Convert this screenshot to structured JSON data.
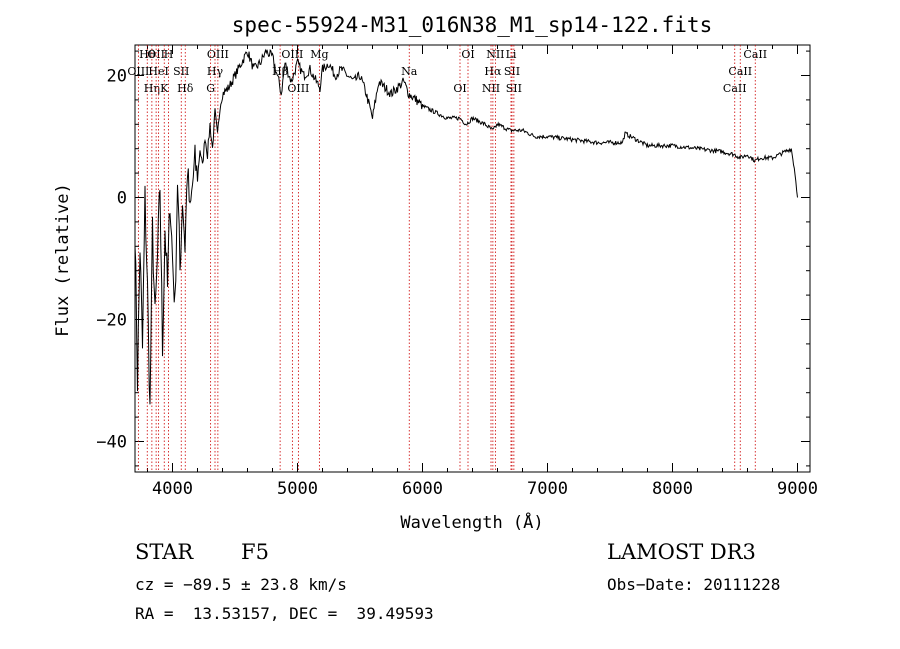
{
  "chart_data": {
    "type": "line",
    "title": "spec-55924-M31_016N38_M1_sp14-122.fits",
    "xlabel": "Wavelength (Å)",
    "ylabel": "Flux (relative)",
    "xlim": [
      3700,
      9100
    ],
    "ylim": [
      -45,
      25
    ],
    "xticks": [
      4000,
      5000,
      6000,
      7000,
      8000,
      9000
    ],
    "yticks": [
      -40,
      -20,
      0,
      20
    ],
    "ytick_labels": [
      "−40",
      "−20",
      "0",
      "20"
    ],
    "line_color": "#000000",
    "marker_color": "#cc0000",
    "series": [
      {
        "name": "spectrum",
        "x": [
          3700,
          3720,
          3740,
          3760,
          3780,
          3800,
          3820,
          3840,
          3860,
          3880,
          3900,
          3920,
          3940,
          3960,
          3980,
          4000,
          4020,
          4040,
          4060,
          4080,
          4100,
          4120,
          4140,
          4160,
          4180,
          4200,
          4220,
          4240,
          4260,
          4280,
          4300,
          4320,
          4340,
          4360,
          4380,
          4400,
          4450,
          4500,
          4550,
          4600,
          4650,
          4700,
          4750,
          4800,
          4850,
          4870,
          4900,
          4950,
          5000,
          5050,
          5100,
          5150,
          5180,
          5200,
          5250,
          5300,
          5350,
          5400,
          5450,
          5500,
          5550,
          5600,
          5650,
          5700,
          5750,
          5800,
          5850,
          5890,
          5950,
          6000,
          6100,
          6200,
          6300,
          6350,
          6400,
          6500,
          6563,
          6600,
          6700,
          6800,
          6900,
          7000,
          7200,
          7400,
          7600,
          7620,
          7800,
          8000,
          8200,
          8400,
          8500,
          8540,
          8600,
          8660,
          8700,
          8800,
          8900,
          8950,
          8980,
          9000
        ],
        "values": [
          -5,
          -30,
          -8,
          -25,
          0,
          -15,
          -35,
          -5,
          -20,
          -10,
          2,
          -25,
          -5,
          -15,
          0,
          -10,
          -18,
          3,
          -12,
          0,
          -8,
          5,
          -3,
          2,
          6,
          3,
          8,
          5,
          10,
          7,
          12,
          8,
          14,
          10,
          15,
          17,
          18,
          20,
          22,
          24,
          21,
          22,
          24,
          23,
          19,
          17,
          22,
          19,
          22,
          20,
          21,
          19,
          18,
          21,
          22,
          20,
          21,
          20,
          19,
          20,
          17,
          13,
          19,
          18,
          17,
          18,
          19,
          17,
          16,
          15,
          14,
          13,
          13,
          12,
          13,
          12,
          11,
          12,
          11,
          11,
          10,
          10,
          9.5,
          9,
          9,
          10.5,
          8.5,
          8.5,
          8,
          7.5,
          7,
          6.5,
          7,
          6,
          6.5,
          6.5,
          7.5,
          8,
          4,
          0
        ]
      }
    ],
    "lines": [
      {
        "label": "Hθ",
        "wave": 3798
      },
      {
        "label": "OIII",
        "wave": 3727
      },
      {
        "label": "Hη",
        "wave": 3835
      },
      {
        "label": "OII",
        "wave": 3869
      },
      {
        "label": "HeI",
        "wave": 3889
      },
      {
        "label": "K",
        "wave": 3934
      },
      {
        "label": "H",
        "wave": 3968
      },
      {
        "label": "SII",
        "wave": 4070
      },
      {
        "label": "Hδ",
        "wave": 4102
      },
      {
        "label": "OIII",
        "wave": 4363
      },
      {
        "label": "Hγ",
        "wave": 4340
      },
      {
        "label": "G",
        "wave": 4305
      },
      {
        "label": "OIII",
        "wave": 4959
      },
      {
        "label": "Hβ",
        "wave": 4861
      },
      {
        "label": "OIII",
        "wave": 5007
      },
      {
        "label": "Mg",
        "wave": 5175
      },
      {
        "label": "Na",
        "wave": 5894
      },
      {
        "label": "OI",
        "wave": 6300
      },
      {
        "label": "OI",
        "wave": 6364
      },
      {
        "label": "Hα",
        "wave": 6563
      },
      {
        "label": "NII",
        "wave": 6548
      },
      {
        "label": "NII",
        "wave": 6583
      },
      {
        "label": "SII",
        "wave": 6716
      },
      {
        "label": "SII",
        "wave": 6731
      },
      {
        "label": "Li",
        "wave": 6708
      },
      {
        "label": "CaII",
        "wave": 8542
      },
      {
        "label": "CaII",
        "wave": 8498
      },
      {
        "label": "CaII",
        "wave": 8662
      }
    ]
  },
  "info": {
    "star_class": "STAR",
    "subclass": "F5",
    "survey": "LAMOST DR3",
    "cz": "cz = −89.5 ± 23.8 km/s",
    "obs_date": "Obs−Date: 20111228",
    "coords": "RA =  13.53157, DEC =  39.49593"
  }
}
